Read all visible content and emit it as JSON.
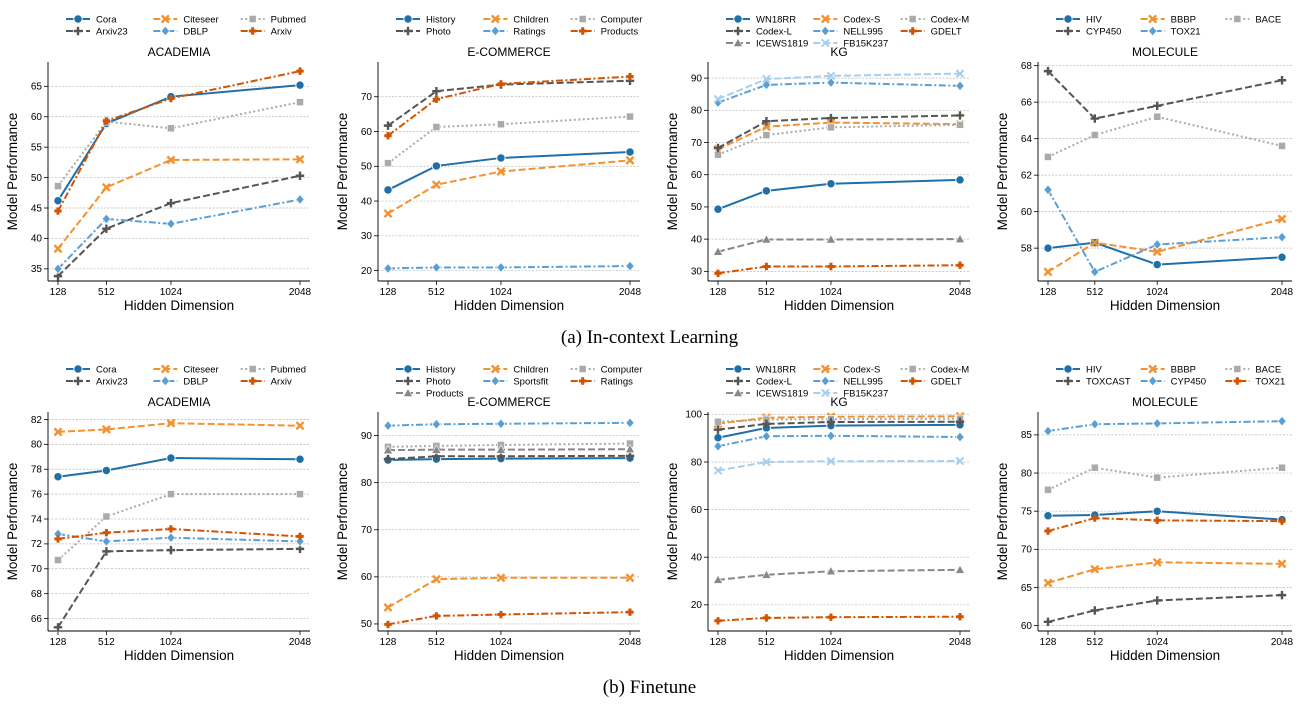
{
  "captions": [
    "(a) In-context Learning",
    "(b) Finetune"
  ],
  "chart_data": [
    {
      "type": "line",
      "title": "ACADEMIA",
      "xlabel": "Hidden Dimension",
      "ylabel": "Model Performance",
      "x": [
        128,
        512,
        1024,
        2048
      ],
      "ylim": [
        33,
        69
      ],
      "yticks": [
        35,
        40,
        45,
        50,
        55,
        60,
        65
      ],
      "grid": "y-major",
      "legend": "top, 3 columns",
      "series": [
        {
          "name": "Cora",
          "color": "#1f6fa8",
          "marker": "circle",
          "dash": "solid",
          "values": [
            46.2,
            58.9,
            63.3,
            65.2
          ]
        },
        {
          "name": "Citeseer",
          "color": "#f39230",
          "marker": "x",
          "dash": "dashed",
          "values": [
            38.3,
            48.4,
            52.9,
            53.0
          ]
        },
        {
          "name": "Pubmed",
          "color": "#aaaaaa",
          "marker": "square",
          "dash": "dotted",
          "values": [
            48.6,
            59.2,
            58.1,
            62.4
          ]
        },
        {
          "name": "Arxiv23",
          "color": "#555555",
          "marker": "plus",
          "dash": "dashed",
          "values": [
            33.8,
            41.6,
            45.8,
            50.3
          ]
        },
        {
          "name": "DBLP",
          "color": "#5a9fd4",
          "marker": "diamond",
          "dash": "dashdot",
          "values": [
            35.0,
            43.2,
            42.4,
            46.4
          ]
        },
        {
          "name": "Arxiv",
          "color": "#d35400",
          "marker": "pplus",
          "dash": "dashdot",
          "values": [
            44.5,
            59.3,
            63.0,
            67.5
          ]
        }
      ]
    },
    {
      "type": "line",
      "title": "E-COMMERCE",
      "xlabel": "Hidden Dimension",
      "ylabel": "Model Performance",
      "x": [
        128,
        512,
        1024,
        2048
      ],
      "ylim": [
        17,
        80
      ],
      "yticks": [
        20,
        30,
        40,
        50,
        60,
        70
      ],
      "grid": "y-major",
      "legend": "top, 3 columns",
      "series": [
        {
          "name": "History",
          "color": "#1f6fa8",
          "marker": "circle",
          "dash": "solid",
          "values": [
            43.2,
            50.1,
            52.4,
            54.1
          ]
        },
        {
          "name": "Children",
          "color": "#f39230",
          "marker": "x",
          "dash": "dashed",
          "values": [
            36.4,
            44.7,
            48.5,
            51.7
          ]
        },
        {
          "name": "Computer",
          "color": "#aaaaaa",
          "marker": "square",
          "dash": "dotted",
          "values": [
            50.9,
            61.3,
            62.1,
            64.3
          ]
        },
        {
          "name": "Photo",
          "color": "#555555",
          "marker": "plus",
          "dash": "dashed",
          "values": [
            61.7,
            71.6,
            73.5,
            74.6
          ]
        },
        {
          "name": "Ratings",
          "color": "#5a9fd4",
          "marker": "diamond",
          "dash": "dashdot",
          "values": [
            20.6,
            20.9,
            20.9,
            21.3
          ]
        },
        {
          "name": "Products",
          "color": "#d35400",
          "marker": "pplus",
          "dash": "dashdot",
          "values": [
            58.8,
            69.3,
            73.7,
            75.8
          ]
        }
      ]
    },
    {
      "type": "line",
      "title": "KG",
      "xlabel": "Hidden Dimension",
      "ylabel": "Model Performance",
      "x": [
        128,
        512,
        1024,
        2048
      ],
      "ylim": [
        27,
        95
      ],
      "yticks": [
        30,
        40,
        50,
        60,
        70,
        80,
        90
      ],
      "grid": "y-major",
      "legend": "top, 3 columns",
      "series": [
        {
          "name": "WN18RR",
          "color": "#1f6fa8",
          "marker": "circle",
          "dash": "solid",
          "values": [
            49.3,
            55.0,
            57.2,
            58.4
          ]
        },
        {
          "name": "Codex-S",
          "color": "#f39230",
          "marker": "x",
          "dash": "dashed",
          "values": [
            67.9,
            74.9,
            76.2,
            75.7
          ]
        },
        {
          "name": "Codex-M",
          "color": "#aaaaaa",
          "marker": "square",
          "dash": "dotted",
          "values": [
            66.2,
            72.3,
            74.7,
            75.5
          ]
        },
        {
          "name": "Codex-L",
          "color": "#555555",
          "marker": "plus",
          "dash": "dashed",
          "values": [
            68.3,
            76.6,
            77.6,
            78.4
          ]
        },
        {
          "name": "NELL995",
          "color": "#5a9fd4",
          "marker": "diamond",
          "dash": "dashdot",
          "values": [
            82.4,
            87.9,
            88.6,
            87.6
          ]
        },
        {
          "name": "GDELT",
          "color": "#d35400",
          "marker": "pplus",
          "dash": "dashdot",
          "values": [
            29.4,
            31.5,
            31.5,
            31.9
          ]
        },
        {
          "name": "ICEWS1819",
          "color": "#888888",
          "marker": "triangle",
          "dash": "dashed",
          "values": [
            36.1,
            39.9,
            39.9,
            40.0
          ]
        },
        {
          "name": "FB15K237",
          "color": "#a6cfee",
          "marker": "xthin",
          "dash": "dashed",
          "values": [
            83.5,
            89.7,
            90.7,
            91.4
          ]
        }
      ]
    },
    {
      "type": "line",
      "title": "MOLECULE",
      "xlabel": "Hidden Dimension",
      "ylabel": "Model Performance",
      "x": [
        128,
        512,
        1024,
        2048
      ],
      "ylim": [
        56.2,
        68.2
      ],
      "yticks": [
        58,
        60,
        62,
        64,
        66,
        68
      ],
      "grid": "y-major",
      "legend": "top, 3 columns",
      "series": [
        {
          "name": "HIV",
          "color": "#1f6fa8",
          "marker": "circle",
          "dash": "solid",
          "values": [
            58.0,
            58.3,
            57.1,
            57.5
          ]
        },
        {
          "name": "BBBP",
          "color": "#f39230",
          "marker": "x",
          "dash": "dashed",
          "values": [
            56.7,
            58.3,
            57.8,
            59.6
          ]
        },
        {
          "name": "BACE",
          "color": "#aaaaaa",
          "marker": "square",
          "dash": "dotted",
          "values": [
            63.0,
            64.2,
            65.2,
            63.6
          ]
        },
        {
          "name": "CYP450",
          "color": "#555555",
          "marker": "plus",
          "dash": "dashed",
          "values": [
            67.7,
            65.1,
            65.8,
            67.2
          ]
        },
        {
          "name": "TOX21",
          "color": "#5a9fd4",
          "marker": "diamond",
          "dash": "dashdot",
          "values": [
            61.2,
            56.7,
            58.2,
            58.6
          ]
        }
      ]
    },
    {
      "type": "line",
      "title": "ACADEMIA",
      "xlabel": "Hidden Dimension",
      "ylabel": "Model Performance",
      "x": [
        128,
        512,
        1024,
        2048
      ],
      "ylim": [
        65,
        82.6
      ],
      "yticks": [
        66,
        68,
        70,
        72,
        74,
        76,
        78,
        80,
        82
      ],
      "grid": "y-major",
      "legend": "top, 3 columns",
      "series": [
        {
          "name": "Cora",
          "color": "#1f6fa8",
          "marker": "circle",
          "dash": "solid",
          "values": [
            77.4,
            77.9,
            78.9,
            78.8
          ]
        },
        {
          "name": "Citeseer",
          "color": "#f39230",
          "marker": "x",
          "dash": "dashed",
          "values": [
            81.0,
            81.2,
            81.7,
            81.5
          ]
        },
        {
          "name": "Pubmed",
          "color": "#aaaaaa",
          "marker": "square",
          "dash": "dotted",
          "values": [
            70.7,
            74.2,
            76.0,
            76.0
          ]
        },
        {
          "name": "Arxiv23",
          "color": "#555555",
          "marker": "plus",
          "dash": "dashed",
          "values": [
            65.3,
            71.4,
            71.5,
            71.6
          ]
        },
        {
          "name": "DBLP",
          "color": "#5a9fd4",
          "marker": "diamond",
          "dash": "dashdot",
          "values": [
            72.8,
            72.2,
            72.5,
            72.2
          ]
        },
        {
          "name": "Arxiv",
          "color": "#d35400",
          "marker": "pplus",
          "dash": "dashdot",
          "values": [
            72.4,
            72.9,
            73.2,
            72.6
          ]
        }
      ]
    },
    {
      "type": "line",
      "title": "E-COMMERCE",
      "xlabel": "Hidden Dimension",
      "ylabel": "Model Performance",
      "x": [
        128,
        512,
        1024,
        2048
      ],
      "ylim": [
        48.5,
        95
      ],
      "yticks": [
        50,
        60,
        70,
        80,
        90
      ],
      "grid": "y-major",
      "legend": "top, 3 columns",
      "series": [
        {
          "name": "History",
          "color": "#1f6fa8",
          "marker": "circle",
          "dash": "solid",
          "values": [
            84.8,
            85.0,
            85.1,
            85.2
          ]
        },
        {
          "name": "Children",
          "color": "#f39230",
          "marker": "x",
          "dash": "dashed",
          "values": [
            53.5,
            59.5,
            59.8,
            59.8
          ]
        },
        {
          "name": "Computer",
          "color": "#aaaaaa",
          "marker": "square",
          "dash": "dotted",
          "values": [
            87.6,
            87.8,
            88.0,
            88.3
          ]
        },
        {
          "name": "Photo",
          "color": "#555555",
          "marker": "plus",
          "dash": "dashed",
          "values": [
            85.0,
            85.6,
            85.6,
            85.7
          ]
        },
        {
          "name": "Sportsfit",
          "color": "#5a9fd4",
          "marker": "diamond",
          "dash": "dashdot",
          "values": [
            92.1,
            92.4,
            92.5,
            92.7
          ]
        },
        {
          "name": "Ratings",
          "color": "#d35400",
          "marker": "pplus",
          "dash": "dashdot",
          "values": [
            49.9,
            51.7,
            52.0,
            52.5
          ]
        },
        {
          "name": "Products",
          "color": "#888888",
          "marker": "triangle",
          "dash": "dashed",
          "values": [
            86.9,
            87.0,
            87.0,
            87.1
          ]
        }
      ]
    },
    {
      "type": "line",
      "title": "KG",
      "xlabel": "Hidden Dimension",
      "ylabel": "Model Performance",
      "x": [
        128,
        512,
        1024,
        2048
      ],
      "ylim": [
        9,
        101
      ],
      "yticks": [
        20,
        40,
        60,
        80,
        100
      ],
      "grid": "y-major",
      "legend": "top, 3 columns",
      "series": [
        {
          "name": "WN18RR",
          "color": "#1f6fa8",
          "marker": "circle",
          "dash": "solid",
          "values": [
            90.2,
            94.3,
            95.3,
            95.6
          ]
        },
        {
          "name": "Codex-S",
          "color": "#f39230",
          "marker": "x",
          "dash": "dashed",
          "values": [
            96.1,
            98.6,
            99.0,
            99.2
          ]
        },
        {
          "name": "Codex-M",
          "color": "#aaaaaa",
          "marker": "square",
          "dash": "dotted",
          "values": [
            96.9,
            97.8,
            98.0,
            98.2
          ]
        },
        {
          "name": "Codex-L",
          "color": "#555555",
          "marker": "plus",
          "dash": "dashed",
          "values": [
            93.6,
            96.0,
            96.8,
            96.9
          ]
        },
        {
          "name": "NELL995",
          "color": "#5a9fd4",
          "marker": "diamond",
          "dash": "dashdot",
          "values": [
            86.6,
            90.8,
            91.0,
            90.5
          ]
        },
        {
          "name": "GDELT",
          "color": "#d35400",
          "marker": "pplus",
          "dash": "dashdot",
          "values": [
            13.3,
            14.5,
            14.8,
            15.0
          ]
        },
        {
          "name": "ICEWS1819",
          "color": "#888888",
          "marker": "triangle",
          "dash": "dashed",
          "values": [
            30.5,
            32.6,
            34.1,
            34.7
          ]
        },
        {
          "name": "FB15K237",
          "color": "#a6cfee",
          "marker": "xthin",
          "dash": "dashed",
          "values": [
            76.4,
            80.0,
            80.3,
            80.4
          ]
        }
      ]
    },
    {
      "type": "line",
      "title": "MOLECULE",
      "xlabel": "Hidden Dimension",
      "ylabel": "Model Performance",
      "x": [
        128,
        512,
        1024,
        2048
      ],
      "ylim": [
        59.3,
        88
      ],
      "yticks": [
        60,
        65,
        70,
        75,
        80,
        85
      ],
      "grid": "y-major",
      "legend": "top, 3 columns",
      "series": [
        {
          "name": "HIV",
          "color": "#1f6fa8",
          "marker": "circle",
          "dash": "solid",
          "values": [
            74.4,
            74.5,
            75.0,
            73.9
          ]
        },
        {
          "name": "BBBP",
          "color": "#f39230",
          "marker": "x",
          "dash": "dashed",
          "values": [
            65.6,
            67.4,
            68.3,
            68.1
          ]
        },
        {
          "name": "BACE",
          "color": "#aaaaaa",
          "marker": "square",
          "dash": "dotted",
          "values": [
            77.8,
            80.7,
            79.4,
            80.7
          ]
        },
        {
          "name": "TOXCAST",
          "color": "#555555",
          "marker": "plus",
          "dash": "dashed",
          "values": [
            60.5,
            62.0,
            63.3,
            64.0
          ]
        },
        {
          "name": "CYP450",
          "color": "#5a9fd4",
          "marker": "diamond",
          "dash": "dashdot",
          "values": [
            85.5,
            86.4,
            86.5,
            86.8
          ]
        },
        {
          "name": "TOX21",
          "color": "#d35400",
          "marker": "pplus",
          "dash": "dashdot",
          "values": [
            72.4,
            74.1,
            73.8,
            73.7
          ]
        }
      ]
    }
  ]
}
